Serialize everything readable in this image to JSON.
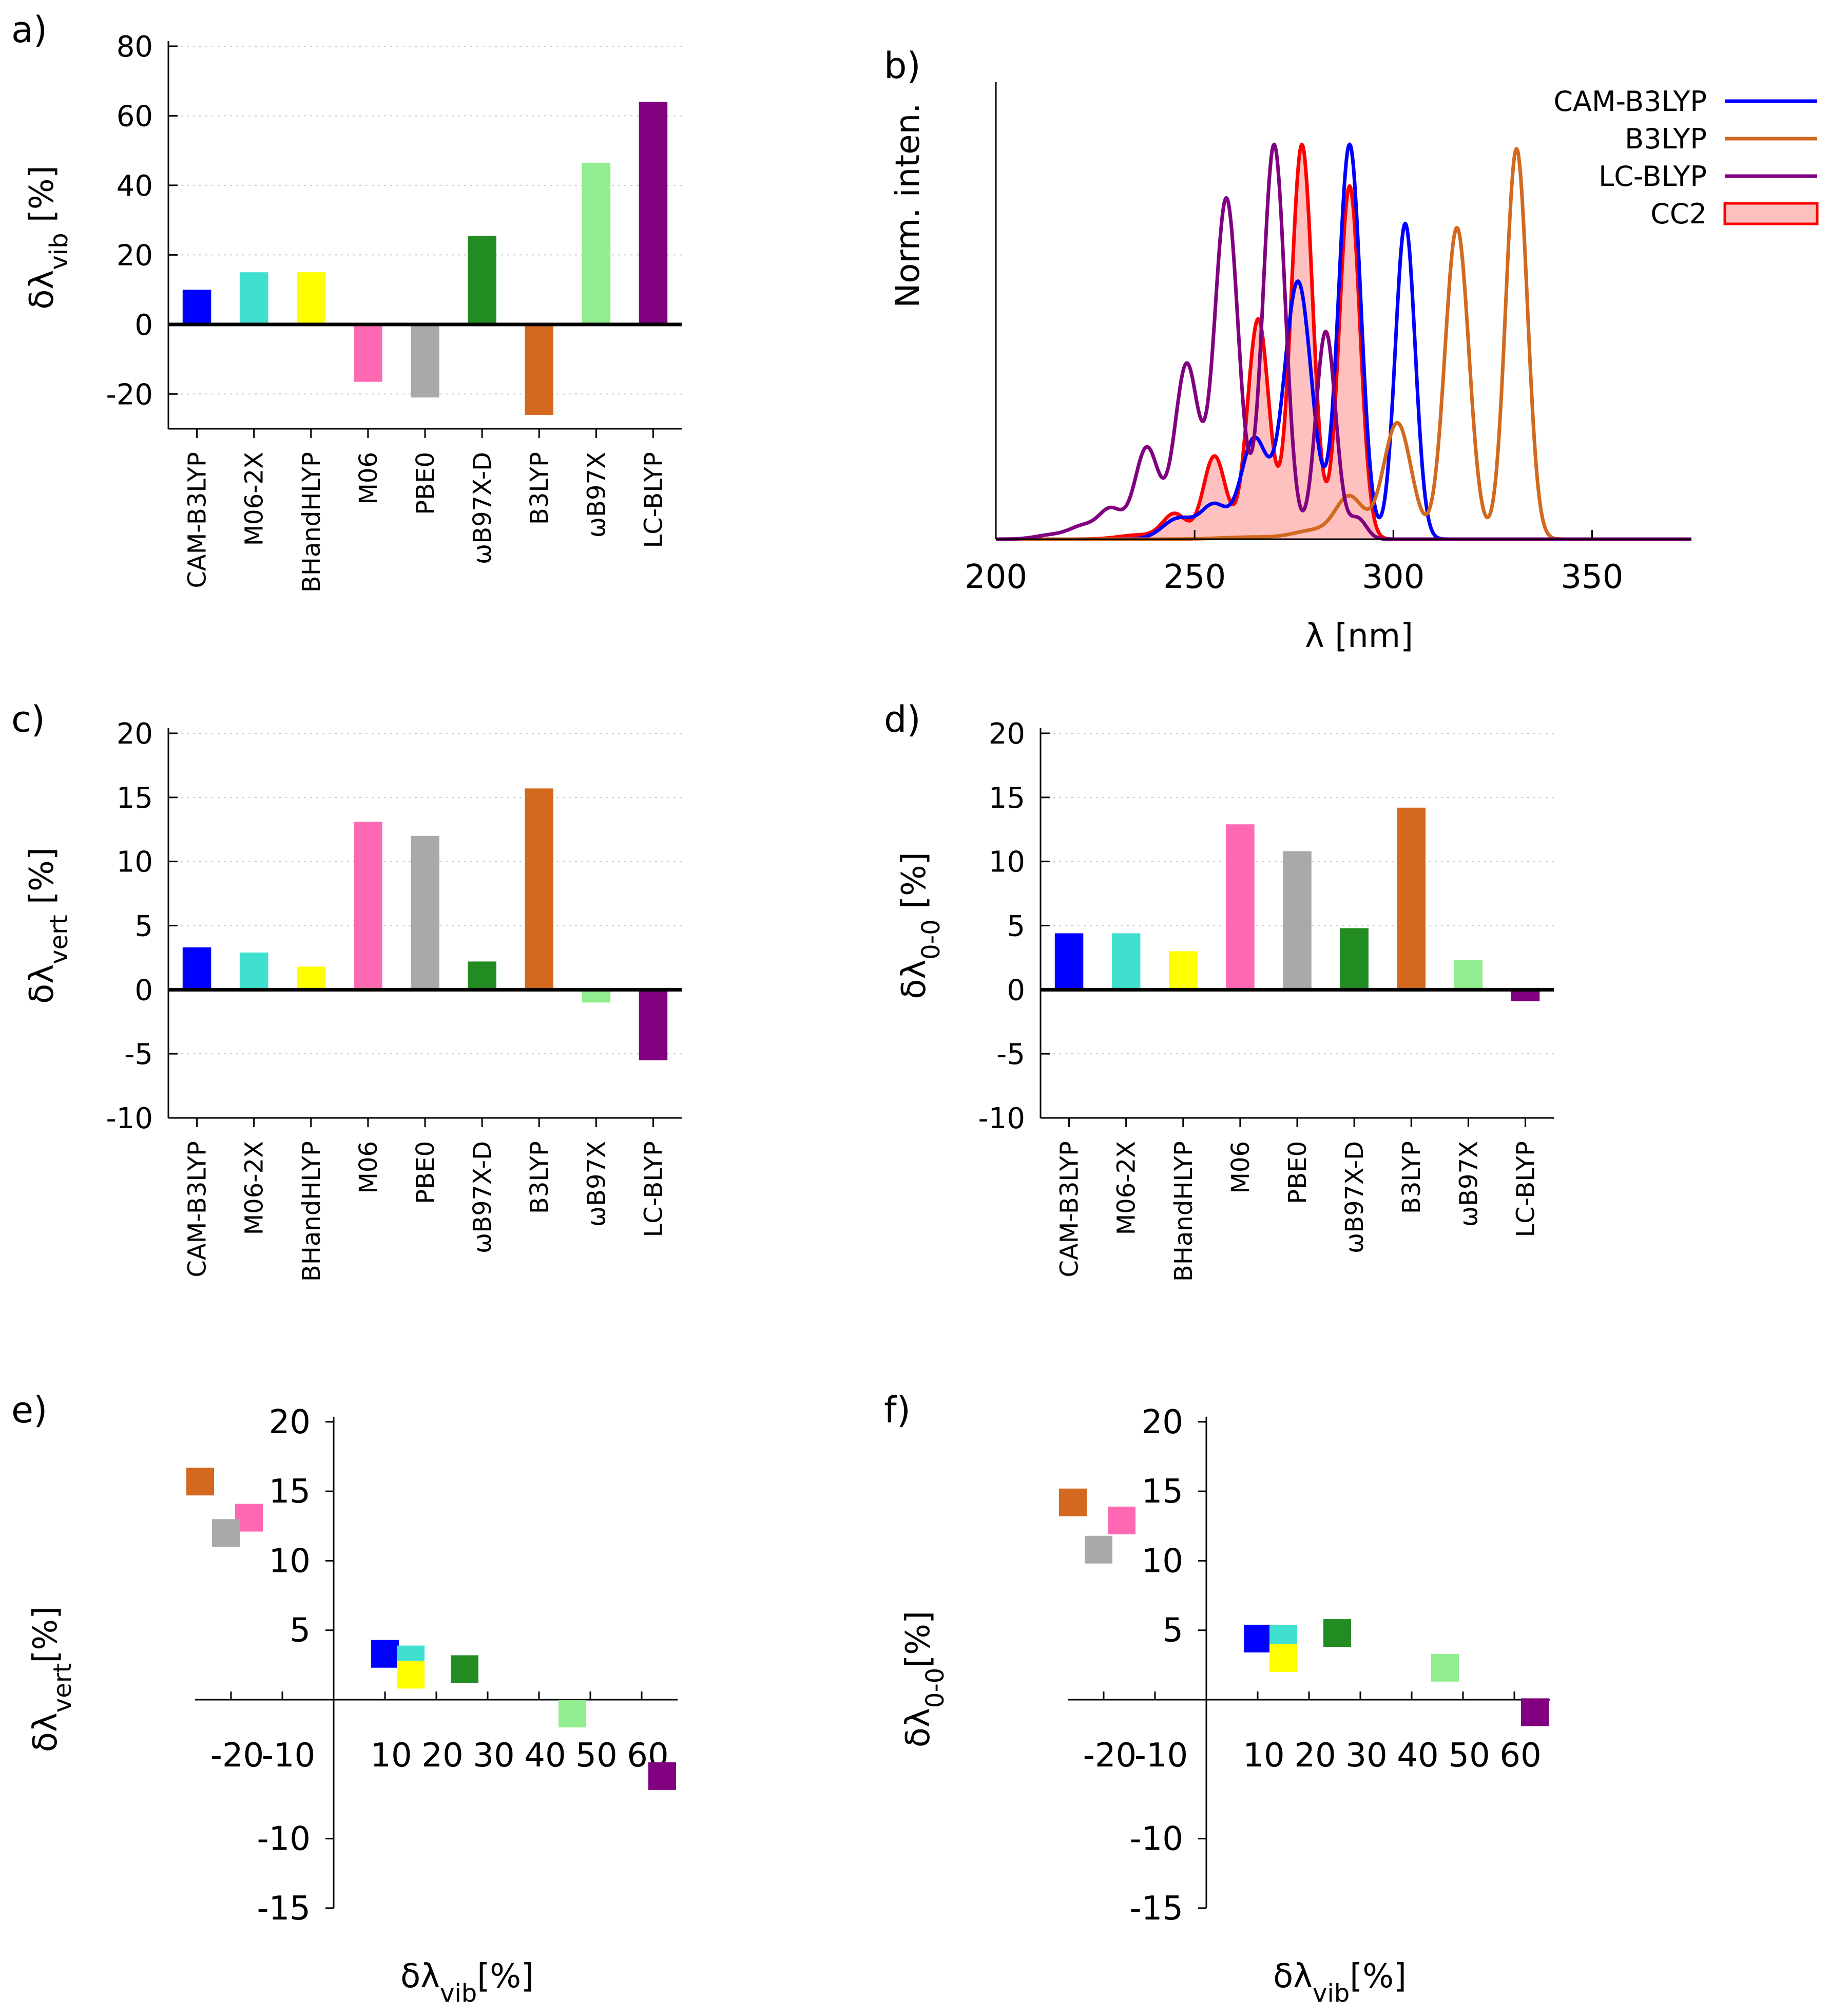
{
  "colors": {
    "CAM-B3LYP": "#0000ff",
    "M06-2X": "#40e0d0",
    "BHandHLYP": "#ffff00",
    "M06": "#ff69b4",
    "PBE0": "#a9a9a9",
    "wB97X-D": "#228b22",
    "B3LYP": "#d2691e",
    "wB97X": "#90ee90",
    "LC-BLYP": "#800080",
    "CC2": "#ff0000",
    "CC2_fill": "#ffc0c0"
  },
  "chart_data": [
    {
      "id": "a",
      "type": "bar",
      "panel_label": "a)",
      "ylabel": "δλ",
      "ylabel_sub": "vib",
      "ylabel_suffix": " [%]",
      "ylim": [
        -30,
        80
      ],
      "yticks": [
        -20,
        0,
        20,
        40,
        60,
        80
      ],
      "ytick_labels": [
        "-20",
        "0",
        "20",
        "40",
        "60",
        "80"
      ],
      "categories": [
        "CAM-B3LYP",
        "M06-2X",
        "BHandHLYP",
        "M06",
        "PBE0",
        "ωB97X-D",
        "B3LYP",
        "ωB97X",
        "LC-BLYP"
      ],
      "color_keys": [
        "CAM-B3LYP",
        "M06-2X",
        "BHandHLYP",
        "M06",
        "PBE0",
        "wB97X-D",
        "B3LYP",
        "wB97X",
        "LC-BLYP"
      ],
      "values": [
        10,
        15,
        15,
        -16.5,
        -21,
        25.5,
        -26,
        46.5,
        64
      ],
      "grid": true
    },
    {
      "id": "b",
      "type": "line",
      "panel_label": "b)",
      "xlabel": "λ [nm]",
      "ylabel": "Norm. inten.",
      "xlim": [
        200,
        375
      ],
      "ylim": [
        0,
        1.1
      ],
      "xticks": [
        200,
        250,
        300,
        350
      ],
      "xtick_labels": [
        "200",
        "250",
        "300",
        "350"
      ],
      "legend_position": "top-right",
      "series": [
        {
          "name": "CAM-B3LYP",
          "color_key": "CAM-B3LYP",
          "peaks": [
            [
              246,
              0.05,
              4
            ],
            [
              255,
              0.08,
              3.3
            ],
            [
              265,
              0.24,
              3.3
            ],
            [
              276,
              0.62,
              3.5
            ],
            [
              289,
              0.95,
              2.8
            ],
            [
              303,
              0.76,
              2.5
            ]
          ]
        },
        {
          "name": "B3LYP",
          "color_key": "B3LYP",
          "peaks": [
            [
              265,
              0.005,
              8
            ],
            [
              280,
              0.02,
              5
            ],
            [
              289,
              0.1,
              3.5
            ],
            [
              301,
              0.28,
              3.5
            ],
            [
              316,
              0.75,
              3
            ],
            [
              331,
              0.94,
              2.7
            ]
          ]
        },
        {
          "name": "LC-BLYP",
          "color_key": "LC-BLYP",
          "peaks": [
            [
              214,
              0.01,
              4
            ],
            [
              222,
              0.03,
              3.5
            ],
            [
              229,
              0.07,
              3
            ],
            [
              238,
              0.22,
              3
            ],
            [
              248,
              0.42,
              3
            ],
            [
              258,
              0.82,
              3
            ],
            [
              270,
              0.95,
              2.8
            ],
            [
              283,
              0.5,
              2.5
            ],
            [
              291,
              0.05,
              2.2
            ]
          ]
        },
        {
          "name": "CC2",
          "color_key": "CC2",
          "fill_key": "CC2_fill",
          "filled": true,
          "peaks": [
            [
              236,
              0.01,
              5
            ],
            [
              245,
              0.06,
              3
            ],
            [
              255,
              0.2,
              2.8
            ],
            [
              266,
              0.53,
              2.7
            ],
            [
              277,
              0.95,
              2.7
            ],
            [
              289,
              0.85,
              2.6
            ]
          ]
        }
      ]
    },
    {
      "id": "c",
      "type": "bar",
      "panel_label": "c)",
      "ylabel": "δλ",
      "ylabel_sub": "vert",
      "ylabel_suffix": " [%]",
      "ylim": [
        -10,
        20
      ],
      "yticks": [
        -10,
        -5,
        0,
        5,
        10,
        15,
        20
      ],
      "ytick_labels": [
        "-10",
        "-5",
        "0",
        "5",
        "10",
        "15",
        "20"
      ],
      "categories": [
        "CAM-B3LYP",
        "M06-2X",
        "BHandHLYP",
        "M06",
        "PBE0",
        "ωB97X-D",
        "B3LYP",
        "ωB97X",
        "LC-BLYP"
      ],
      "color_keys": [
        "CAM-B3LYP",
        "M06-2X",
        "BHandHLYP",
        "M06",
        "PBE0",
        "wB97X-D",
        "B3LYP",
        "wB97X",
        "LC-BLYP"
      ],
      "values": [
        3.3,
        2.9,
        1.8,
        13.1,
        12.0,
        2.2,
        15.7,
        -1.0,
        -5.5
      ],
      "grid": true
    },
    {
      "id": "d",
      "type": "bar",
      "panel_label": "d)",
      "ylabel": "δλ",
      "ylabel_sub": "0-0",
      "ylabel_suffix": " [%]",
      "ylim": [
        -10,
        20
      ],
      "yticks": [
        -10,
        -5,
        0,
        5,
        10,
        15,
        20
      ],
      "ytick_labels": [
        "-10",
        "-5",
        "0",
        "5",
        "10",
        "15",
        "20"
      ],
      "categories": [
        "CAM-B3LYP",
        "M06-2X",
        "BHandHLYP",
        "M06",
        "PBE0",
        "ωB97X-D",
        "B3LYP",
        "ωB97X",
        "LC-BLYP"
      ],
      "color_keys": [
        "CAM-B3LYP",
        "M06-2X",
        "BHandHLYP",
        "M06",
        "PBE0",
        "wB97X-D",
        "B3LYP",
        "wB97X",
        "LC-BLYP"
      ],
      "values": [
        4.4,
        4.4,
        3.0,
        12.9,
        10.8,
        4.8,
        14.2,
        2.3,
        -0.9
      ],
      "grid": true
    },
    {
      "id": "e",
      "type": "scatter",
      "panel_label": "e)",
      "xlabel": "δλ",
      "xlabel_sub": "vib",
      "xlabel_suffix": "[%]",
      "ylabel": "δλ",
      "ylabel_sub": "vert",
      "ylabel_suffix": "[%]",
      "xlim": [
        -26,
        65
      ],
      "ylim": [
        -15,
        20
      ],
      "xticks": [
        -20,
        -10,
        10,
        20,
        30,
        40,
        50,
        60
      ],
      "xtick_labels": [
        "-20",
        "-10",
        "10",
        "20",
        "30",
        "40",
        "50",
        "60"
      ],
      "yticks": [
        -15,
        -10,
        5,
        10,
        15,
        20
      ],
      "ytick_labels": [
        "-15",
        "-10",
        "5",
        "10",
        "15",
        "20"
      ],
      "color_keys": [
        "CAM-B3LYP",
        "M06-2X",
        "BHandHLYP",
        "M06",
        "PBE0",
        "wB97X-D",
        "B3LYP",
        "wB97X",
        "LC-BLYP"
      ],
      "x": [
        10,
        15,
        15,
        -16.5,
        -21,
        25.5,
        -26,
        46.5,
        64
      ],
      "y": [
        3.3,
        2.9,
        1.8,
        13.1,
        12.0,
        2.2,
        15.7,
        -1.0,
        -5.5
      ]
    },
    {
      "id": "f",
      "type": "scatter",
      "panel_label": "f)",
      "xlabel": "δλ",
      "xlabel_sub": "vib",
      "xlabel_suffix": "[%]",
      "ylabel": "δλ",
      "ylabel_sub": "0-0",
      "ylabel_suffix": "[%]",
      "xlim": [
        -26,
        65
      ],
      "ylim": [
        -15,
        20
      ],
      "xticks": [
        -20,
        -10,
        10,
        20,
        30,
        40,
        50,
        60
      ],
      "xtick_labels": [
        "-20",
        "-10",
        "10",
        "20",
        "30",
        "40",
        "50",
        "60"
      ],
      "yticks": [
        -15,
        -10,
        5,
        10,
        15,
        20
      ],
      "ytick_labels": [
        "-15",
        "-10",
        "5",
        "10",
        "15",
        "20"
      ],
      "color_keys": [
        "CAM-B3LYP",
        "M06-2X",
        "BHandHLYP",
        "M06",
        "PBE0",
        "wB97X-D",
        "B3LYP",
        "wB97X",
        "LC-BLYP"
      ],
      "x": [
        10,
        15,
        15,
        -16.5,
        -21,
        25.5,
        -26,
        46.5,
        64
      ],
      "y": [
        4.4,
        4.4,
        3.0,
        12.9,
        10.8,
        4.8,
        14.2,
        2.3,
        -0.9
      ]
    }
  ]
}
